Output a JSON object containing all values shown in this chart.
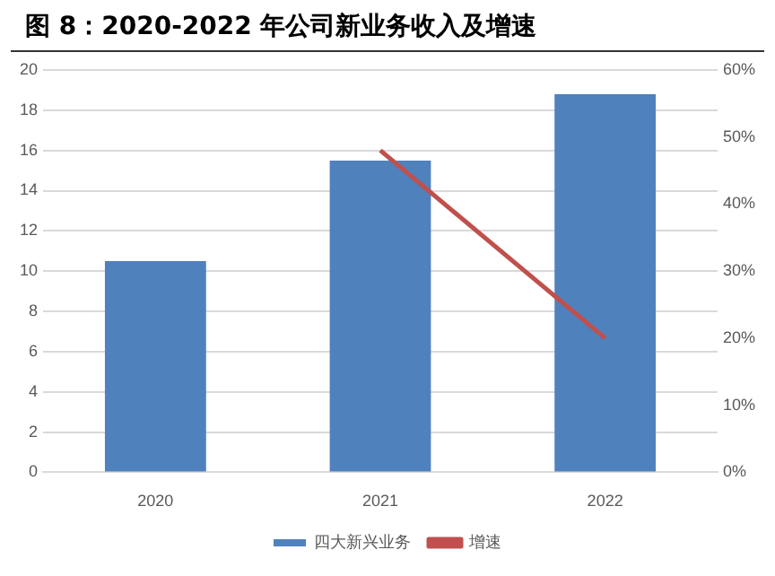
{
  "chart_data": {
    "type": "bar",
    "title": "图 8：2020-2022 年公司新业务收入及增速",
    "categories": [
      "2020",
      "2021",
      "2022"
    ],
    "series": [
      {
        "name": "四大新兴业务",
        "color": "#4f81bd",
        "values": [
          10.5,
          15.5,
          18.8
        ]
      },
      {
        "name": "增速",
        "type": "line",
        "axis": "y2",
        "color": "#c0504d",
        "values": [
          null,
          48,
          20
        ]
      }
    ],
    "ylim": [
      0,
      20
    ],
    "yticks": [
      0,
      2,
      4,
      6,
      8,
      10,
      12,
      14,
      16,
      18,
      20
    ],
    "y2lim": [
      0,
      60
    ],
    "y2ticks": [
      {
        "value": 0,
        "label": "0%"
      },
      {
        "value": 10,
        "label": "10%"
      },
      {
        "value": 20,
        "label": "20%"
      },
      {
        "value": 30,
        "label": "30%"
      },
      {
        "value": 40,
        "label": "40%"
      },
      {
        "value": 50,
        "label": "50%"
      },
      {
        "value": 60,
        "label": "60%"
      }
    ],
    "grid": "y",
    "legend": "bottom",
    "marker": "none",
    "line_style": "solid"
  }
}
